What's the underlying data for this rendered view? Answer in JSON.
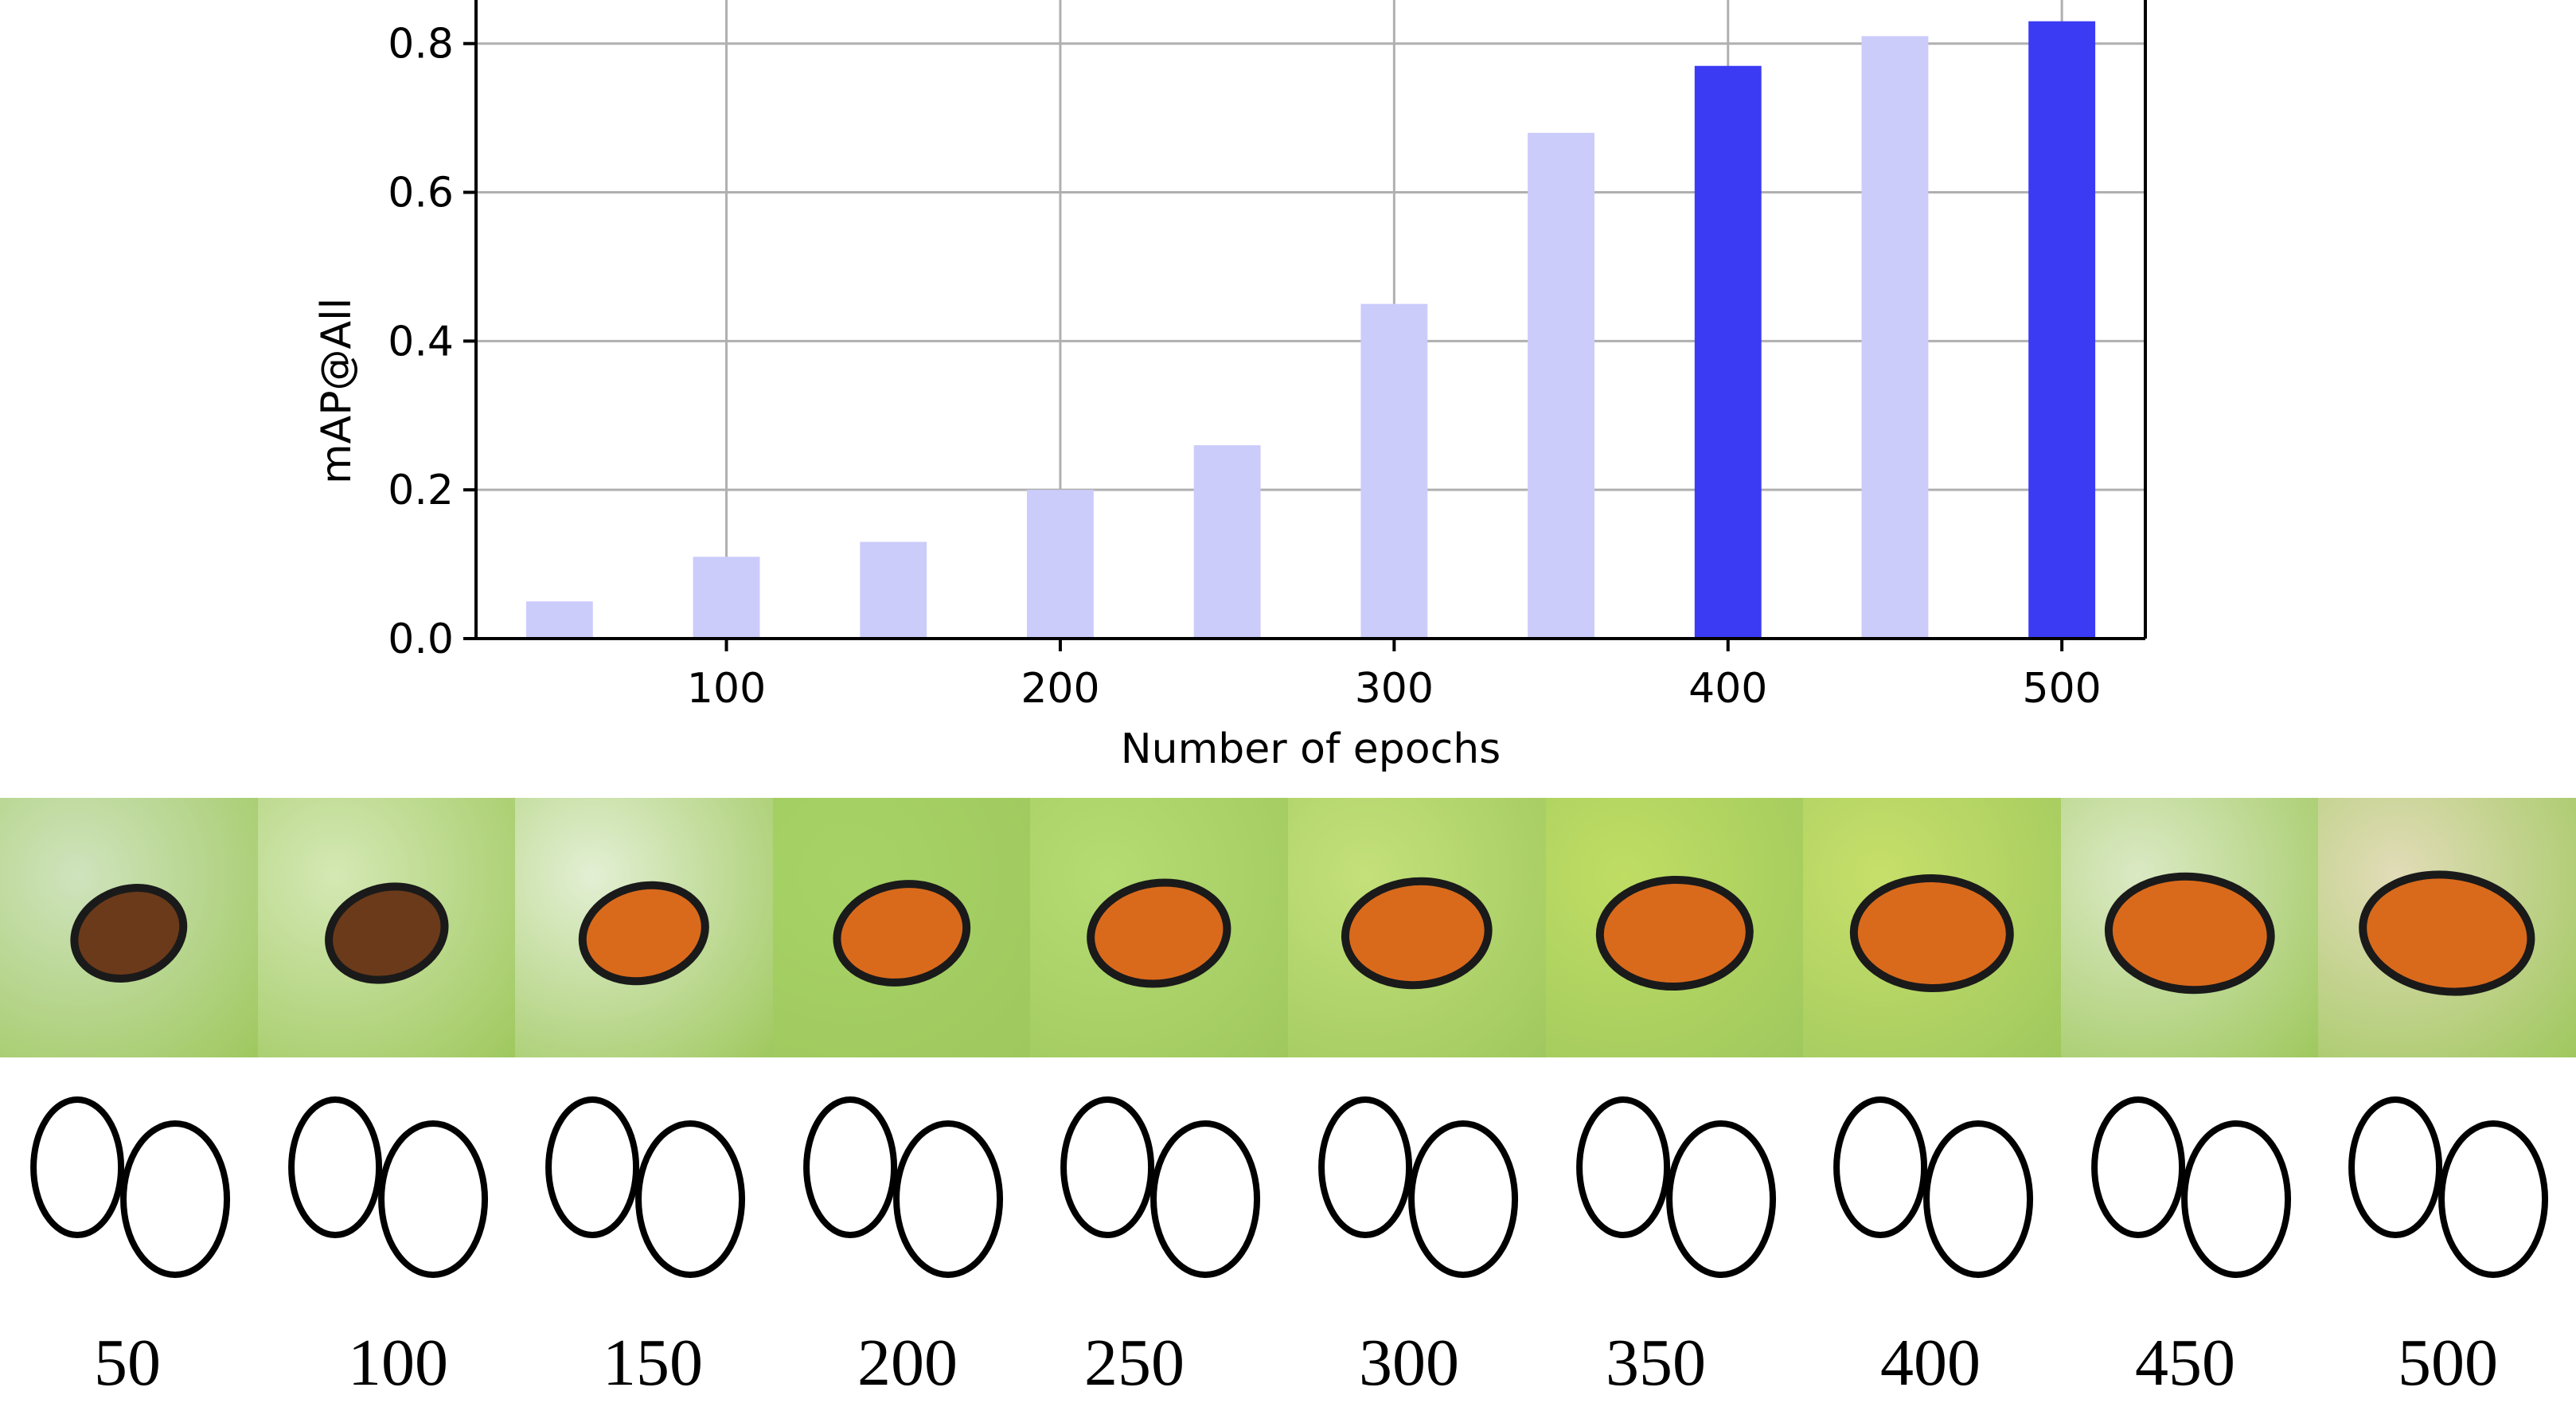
{
  "chart_data": {
    "type": "bar",
    "x": [
      50,
      100,
      150,
      200,
      250,
      300,
      350,
      400,
      450,
      500
    ],
    "values": [
      0.05,
      0.11,
      0.13,
      0.2,
      0.26,
      0.45,
      0.68,
      0.77,
      0.81,
      0.83
    ],
    "highlighted_x": [
      400,
      500
    ],
    "colors": {
      "normal": "#ccccfb",
      "highlight": "#3b3bf4",
      "grid": "#b0b0b0"
    },
    "xlabel": "Number of epochs",
    "ylabel": "mAP@All",
    "xticks": [
      "100",
      "200",
      "300",
      "400",
      "500"
    ],
    "yticks": [
      "0.0",
      "0.2",
      "0.4",
      "0.6",
      "0.8"
    ],
    "ylim": [
      0,
      0.88
    ],
    "xlim": [
      25,
      525
    ],
    "grid": true
  },
  "gallery": {
    "panel_descriptions": [
      "generated-butterfly-epoch-50",
      "generated-butterfly-epoch-100",
      "generated-butterfly-epoch-150",
      "generated-butterfly-epoch-200",
      "generated-butterfly-epoch-250",
      "generated-butterfly-epoch-300",
      "generated-butterfly-epoch-350",
      "generated-butterfly-epoch-400",
      "generated-butterfly-epoch-450",
      "generated-butterfly-epoch-500"
    ],
    "captions": [
      "50",
      "100",
      "150",
      "200",
      "250",
      "300",
      "350",
      "400",
      "450",
      "500"
    ]
  }
}
